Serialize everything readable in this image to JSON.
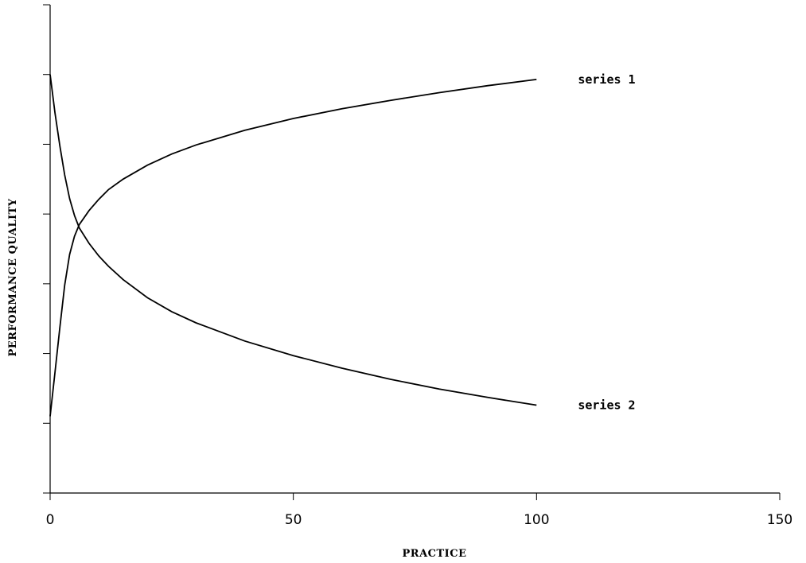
{
  "chart_data": {
    "type": "line",
    "title": "",
    "xlabel": "PRACTICE",
    "ylabel": "PERFORMANCE QUALITY",
    "xlim": [
      0,
      150
    ],
    "ylim": [
      0,
      7
    ],
    "x_ticks": [
      0,
      50,
      100,
      150
    ],
    "y_ticks": [
      0,
      1,
      2,
      3,
      4,
      5,
      6,
      7
    ],
    "grid": false,
    "legend": "inline-right",
    "series": [
      {
        "name": "series 1",
        "color": "#000000",
        "x": [
          0,
          1,
          2,
          3,
          4,
          5,
          6,
          8,
          10,
          12,
          15,
          20,
          25,
          30,
          40,
          50,
          60,
          70,
          80,
          90,
          100
        ],
        "y": [
          1.1,
          1.73,
          2.37,
          2.98,
          3.42,
          3.68,
          3.85,
          4.05,
          4.21,
          4.35,
          4.5,
          4.7,
          4.86,
          4.99,
          5.2,
          5.37,
          5.51,
          5.63,
          5.74,
          5.84,
          5.93
        ]
      },
      {
        "name": "series 2",
        "color": "#000000",
        "x": [
          0,
          1,
          2,
          3,
          4,
          5,
          6,
          8,
          10,
          12,
          15,
          20,
          25,
          30,
          40,
          50,
          60,
          70,
          80,
          90,
          100
        ],
        "y": [
          6.0,
          5.45,
          4.98,
          4.56,
          4.22,
          3.98,
          3.8,
          3.58,
          3.4,
          3.25,
          3.06,
          2.8,
          2.6,
          2.44,
          2.18,
          1.97,
          1.79,
          1.63,
          1.49,
          1.37,
          1.26
        ]
      }
    ]
  }
}
